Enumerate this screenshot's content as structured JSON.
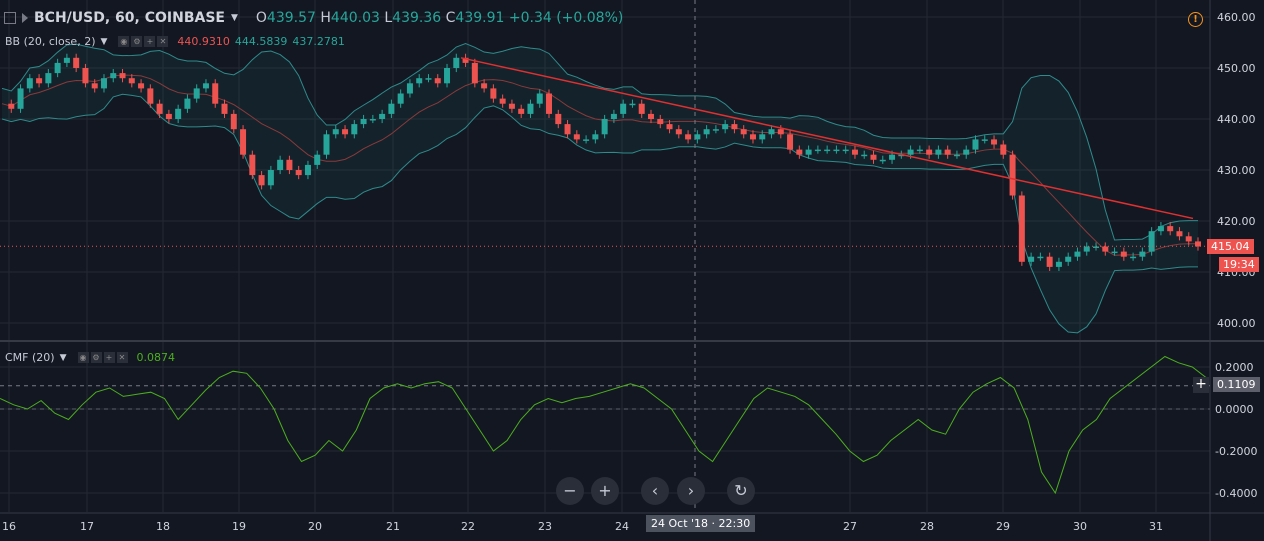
{
  "header": {
    "symbol": "BCH/USD, 60, COINBASE",
    "open_label": "O",
    "open": "439.57",
    "high_label": "H",
    "high": "440.03",
    "low_label": "L",
    "low": "439.36",
    "close_label": "C",
    "close": "439.91",
    "change": "+0.34 (+0.08%)"
  },
  "bb": {
    "label": "BB (20, close, 2)",
    "v1": "440.9310",
    "v2": "444.5839",
    "v3": "437.2781"
  },
  "cmf": {
    "label": "CMF (20)",
    "value": "0.0874"
  },
  "price_axis": [
    "460.00",
    "450.00",
    "440.00",
    "430.00",
    "420.00",
    "410.00",
    "400.00"
  ],
  "cmf_axis": [
    "0.2000",
    "0.0000",
    "-0.2000",
    "-0.4000"
  ],
  "last_price": "415.04",
  "countdown": "19:34",
  "crosshair_cmf": "0.1109",
  "crosshair_time": "24 Oct '18 · 22:30",
  "dates": [
    "16",
    "17",
    "18",
    "19",
    "20",
    "21",
    "22",
    "23",
    "24",
    "27",
    "28",
    "29",
    "30",
    "31"
  ],
  "colors": {
    "bg": "#131722",
    "up": "#26a69a",
    "down": "#ef5350",
    "cmf": "#4caf1e",
    "bb": "#2e8b8b",
    "trend": "#e03030"
  },
  "chart_data": {
    "type": "candlestick",
    "price": {
      "ylim": [
        395,
        464
      ],
      "close_path": [
        [
          0,
          443
        ],
        [
          1,
          442
        ],
        [
          2,
          446
        ],
        [
          3,
          448
        ],
        [
          4,
          447
        ],
        [
          5,
          449
        ],
        [
          6,
          451
        ],
        [
          7,
          452
        ],
        [
          8,
          450
        ],
        [
          9,
          447
        ],
        [
          10,
          446
        ],
        [
          11,
          448
        ],
        [
          12,
          449
        ],
        [
          13,
          448
        ],
        [
          14,
          447
        ],
        [
          15,
          446
        ],
        [
          16,
          443
        ],
        [
          17,
          441
        ],
        [
          18,
          440
        ],
        [
          19,
          442
        ],
        [
          20,
          444
        ],
        [
          21,
          446
        ],
        [
          22,
          447
        ],
        [
          23,
          443
        ],
        [
          24,
          441
        ],
        [
          25,
          438
        ],
        [
          26,
          433
        ],
        [
          27,
          429
        ],
        [
          28,
          427
        ],
        [
          29,
          430
        ],
        [
          30,
          432
        ],
        [
          31,
          430
        ],
        [
          32,
          429
        ],
        [
          33,
          431
        ],
        [
          34,
          433
        ],
        [
          35,
          437
        ],
        [
          36,
          438
        ],
        [
          37,
          437
        ],
        [
          38,
          439
        ],
        [
          39,
          440
        ],
        [
          40,
          440
        ],
        [
          41,
          441
        ],
        [
          42,
          443
        ],
        [
          43,
          445
        ],
        [
          44,
          447
        ],
        [
          45,
          448
        ],
        [
          46,
          448
        ],
        [
          47,
          447
        ],
        [
          48,
          450
        ],
        [
          49,
          452
        ],
        [
          50,
          451
        ],
        [
          51,
          447
        ],
        [
          52,
          446
        ],
        [
          53,
          444
        ],
        [
          54,
          443
        ],
        [
          55,
          442
        ],
        [
          56,
          441
        ],
        [
          57,
          443
        ],
        [
          58,
          445
        ],
        [
          59,
          441
        ],
        [
          60,
          439
        ],
        [
          61,
          437
        ],
        [
          62,
          436
        ],
        [
          63,
          436
        ],
        [
          64,
          437
        ],
        [
          65,
          440
        ],
        [
          66,
          441
        ],
        [
          67,
          443
        ],
        [
          68,
          443
        ],
        [
          69,
          441
        ],
        [
          70,
          440
        ],
        [
          71,
          439
        ],
        [
          72,
          438
        ],
        [
          73,
          437
        ],
        [
          74,
          436
        ],
        [
          75,
          437
        ],
        [
          76,
          438
        ],
        [
          77,
          438
        ],
        [
          78,
          439
        ],
        [
          79,
          438
        ],
        [
          80,
          437
        ],
        [
          81,
          436
        ],
        [
          82,
          437
        ],
        [
          83,
          438
        ],
        [
          84,
          437
        ],
        [
          85,
          434
        ],
        [
          86,
          433
        ],
        [
          87,
          434
        ],
        [
          88,
          434
        ],
        [
          89,
          434
        ],
        [
          90,
          434
        ],
        [
          91,
          434
        ],
        [
          92,
          433
        ],
        [
          93,
          433
        ],
        [
          94,
          432
        ],
        [
          95,
          432
        ],
        [
          96,
          433
        ],
        [
          97,
          433
        ],
        [
          98,
          434
        ],
        [
          99,
          434
        ],
        [
          100,
          433
        ],
        [
          101,
          434
        ],
        [
          102,
          433
        ],
        [
          103,
          433
        ],
        [
          104,
          434
        ],
        [
          105,
          436
        ],
        [
          106,
          436
        ],
        [
          107,
          435
        ],
        [
          108,
          433
        ],
        [
          109,
          425
        ],
        [
          110,
          412
        ],
        [
          111,
          413
        ],
        [
          112,
          413
        ],
        [
          113,
          411
        ],
        [
          114,
          412
        ],
        [
          115,
          413
        ],
        [
          116,
          414
        ],
        [
          117,
          415
        ],
        [
          118,
          415
        ],
        [
          119,
          414
        ],
        [
          120,
          414
        ],
        [
          121,
          413
        ],
        [
          122,
          413
        ],
        [
          123,
          414
        ],
        [
          124,
          418
        ],
        [
          125,
          419
        ],
        [
          126,
          418
        ],
        [
          127,
          417
        ],
        [
          128,
          416
        ],
        [
          129,
          415
        ]
      ],
      "trendline": [
        [
          22,
          452
        ],
        [
          31.4,
          420
        ]
      ]
    },
    "cmf": {
      "ylim": [
        -0.48,
        0.3
      ],
      "values_approx": [
        0.05,
        0.02,
        0.0,
        0.04,
        -0.02,
        -0.05,
        0.02,
        0.08,
        0.1,
        0.06,
        0.07,
        0.08,
        0.05,
        -0.05,
        0.02,
        0.09,
        0.15,
        0.18,
        0.17,
        0.1,
        0.0,
        -0.15,
        -0.25,
        -0.22,
        -0.15,
        -0.2,
        -0.1,
        0.05,
        0.1,
        0.12,
        0.1,
        0.12,
        0.13,
        0.1,
        0.0,
        -0.1,
        -0.2,
        -0.15,
        -0.05,
        0.02,
        0.05,
        0.03,
        0.05,
        0.06,
        0.08,
        0.1,
        0.12,
        0.1,
        0.05,
        0.0,
        -0.1,
        -0.2,
        -0.25,
        -0.15,
        -0.05,
        0.05,
        0.1,
        0.08,
        0.06,
        0.02,
        -0.05,
        -0.12,
        -0.2,
        -0.25,
        -0.22,
        -0.15,
        -0.1,
        -0.05,
        -0.1,
        -0.12,
        0.0,
        0.08,
        0.12,
        0.15,
        0.1,
        -0.05,
        -0.3,
        -0.4,
        -0.2,
        -0.1,
        -0.05,
        0.05,
        0.1,
        0.15,
        0.2,
        0.25,
        0.22,
        0.2,
        0.15
      ]
    }
  }
}
